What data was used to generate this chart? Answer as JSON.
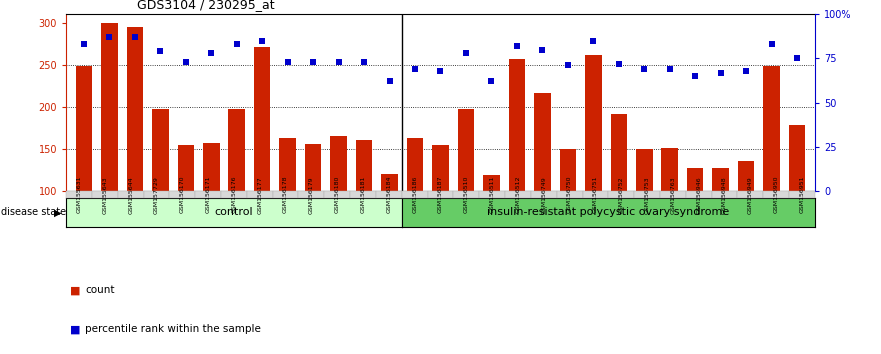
{
  "title": "GDS3104 / 230295_at",
  "samples": [
    "GSM155631",
    "GSM155643",
    "GSM155644",
    "GSM157729",
    "GSM156170",
    "GSM156171",
    "GSM156176",
    "GSM156177",
    "GSM156178",
    "GSM156179",
    "GSM156180",
    "GSM156181",
    "GSM156184",
    "GSM156186",
    "GSM156187",
    "GSM156510",
    "GSM156511",
    "GSM156512",
    "GSM156749",
    "GSM156750",
    "GSM156751",
    "GSM156752",
    "GSM156753",
    "GSM156763",
    "GSM156946",
    "GSM156948",
    "GSM156949",
    "GSM156950",
    "GSM156951"
  ],
  "bar_values": [
    248,
    300,
    295,
    198,
    155,
    157,
    198,
    271,
    163,
    156,
    165,
    161,
    120,
    163,
    155,
    197,
    119,
    257,
    216,
    150,
    262,
    191,
    150,
    151,
    128,
    127,
    136,
    248,
    178
  ],
  "percentile_values": [
    83,
    87,
    87,
    79,
    73,
    78,
    83,
    85,
    73,
    73,
    73,
    73,
    62,
    69,
    68,
    78,
    62,
    82,
    80,
    71,
    85,
    72,
    69,
    69,
    65,
    67,
    68,
    83,
    75
  ],
  "control_count": 13,
  "disease_count": 16,
  "bar_color": "#cc2200",
  "dot_color": "#0000cc",
  "ylim_left": [
    100,
    310
  ],
  "ylim_right": [
    0,
    100
  ],
  "yticks_left": [
    100,
    150,
    200,
    250,
    300
  ],
  "yticks_right": [
    0,
    25,
    50,
    75,
    100
  ],
  "yticklabels_right": [
    "0",
    "25",
    "50",
    "75",
    "100%"
  ],
  "control_label": "control",
  "disease_label": "insulin-resistant polycystic ovary syndrome",
  "disease_state_label": "disease state",
  "legend_bar_label": "count",
  "legend_dot_label": "percentile rank within the sample",
  "ctrl_color": "#ccffcc",
  "dis_color": "#66cc66",
  "xticklabel_bg": "#d8d8d8"
}
